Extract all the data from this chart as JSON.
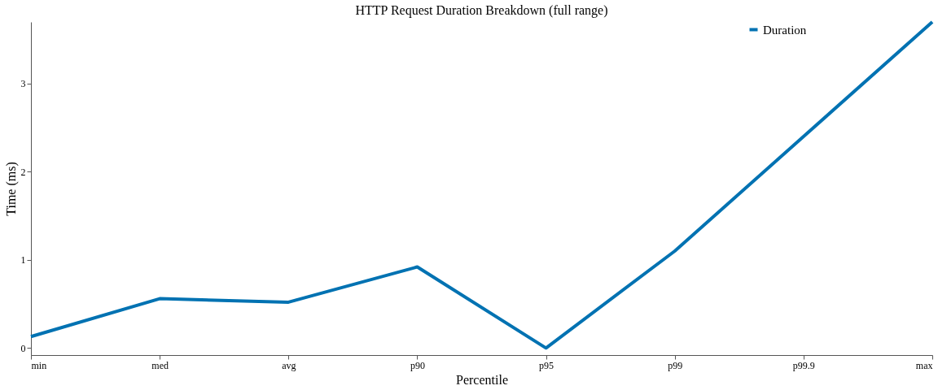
{
  "chart_data": {
    "type": "line",
    "title": "HTTP Request Duration Breakdown (full range)",
    "xlabel": "Percentile",
    "ylabel": "Time (ms)",
    "categories": [
      "min",
      "med",
      "avg",
      "p90",
      "p95",
      "p99",
      "p99.9",
      "max"
    ],
    "series": [
      {
        "name": "Duration",
        "color": "#0072b2",
        "values": [
          0.13,
          0.56,
          0.52,
          0.92,
          0.0,
          1.1,
          2.4,
          3.7
        ]
      }
    ],
    "ylim": [
      -0.08,
      3.7
    ],
    "yticks": [
      0,
      1,
      2,
      3
    ],
    "grid": false,
    "legend": "top right",
    "marker": "none",
    "line_style": "solid"
  }
}
